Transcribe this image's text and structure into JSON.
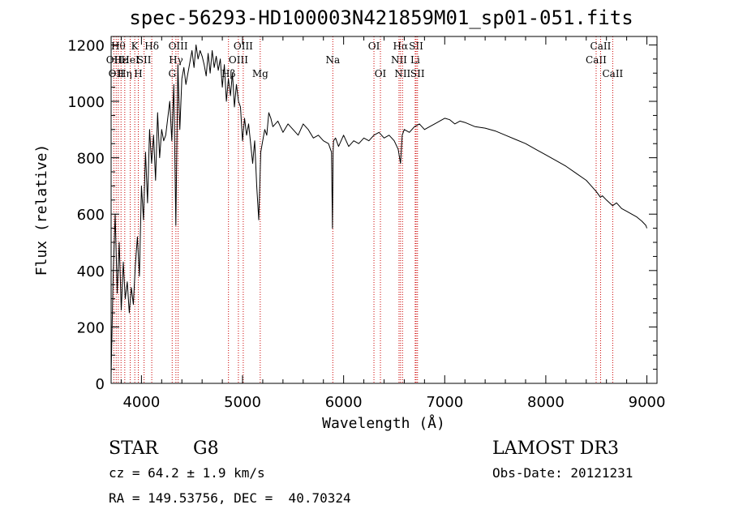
{
  "chart_data": {
    "type": "line",
    "title": "spec-56293-HD100003N421859M01_sp01-051.fits",
    "xlabel": "Wavelength (Å)",
    "ylabel": "Flux (relative)",
    "xlim": [
      3700,
      9100
    ],
    "ylim": [
      0,
      1230
    ],
    "xticks": [
      "4000",
      "5000",
      "6000",
      "7000",
      "8000",
      "9000"
    ],
    "yticks": [
      "0",
      "200",
      "400",
      "600",
      "800",
      "1000",
      "1200"
    ],
    "grid": false,
    "series": [
      {
        "x": [
          3700,
          3720,
          3740,
          3760,
          3780,
          3800,
          3820,
          3840,
          3860,
          3880,
          3900,
          3920,
          3940,
          3960,
          3980,
          4000,
          4020,
          4040,
          4060,
          4080,
          4100,
          4120,
          4140,
          4160,
          4180,
          4200,
          4220,
          4240,
          4260,
          4280,
          4300,
          4320,
          4340,
          4360,
          4380,
          4400,
          4420,
          4440,
          4460,
          4480,
          4500,
          4520,
          4540,
          4560,
          4580,
          4600,
          4620,
          4640,
          4660,
          4680,
          4700,
          4720,
          4740,
          4760,
          4780,
          4800,
          4820,
          4840,
          4860,
          4880,
          4900,
          4920,
          4940,
          4960,
          4980,
          5000,
          5020,
          5040,
          5060,
          5080,
          5100,
          5120,
          5140,
          5160,
          5180,
          5200,
          5220,
          5240,
          5260,
          5280,
          5300,
          5350,
          5400,
          5450,
          5500,
          5550,
          5600,
          5650,
          5700,
          5750,
          5800,
          5850,
          5880,
          5890,
          5896,
          5900,
          5920,
          5950,
          6000,
          6050,
          6100,
          6150,
          6200,
          6250,
          6300,
          6350,
          6400,
          6450,
          6500,
          6540,
          6563,
          6580,
          6600,
          6650,
          6700,
          6750,
          6800,
          6850,
          6900,
          6950,
          7000,
          7050,
          7100,
          7150,
          7200,
          7300,
          7400,
          7500,
          7600,
          7700,
          7800,
          7900,
          8000,
          8100,
          8200,
          8300,
          8400,
          8450,
          8500,
          8540,
          8560,
          8600,
          8660,
          8700,
          8750,
          8800,
          8850,
          8900,
          8950,
          8990,
          9000
        ],
        "y": [
          30,
          380,
          600,
          320,
          500,
          260,
          430,
          300,
          360,
          250,
          340,
          280,
          420,
          520,
          380,
          700,
          580,
          820,
          640,
          900,
          780,
          880,
          720,
          960,
          800,
          900,
          860,
          880,
          940,
          1000,
          860,
          1060,
          560,
          1130,
          900,
          1080,
          1120,
          1060,
          1100,
          1140,
          1180,
          1120,
          1200,
          1150,
          1180,
          1160,
          1130,
          1090,
          1170,
          1100,
          1180,
          1120,
          1160,
          1110,
          1150,
          1050,
          1130,
          1000,
          1080,
          1020,
          1100,
          980,
          1060,
          1000,
          980,
          860,
          940,
          880,
          920,
          850,
          780,
          860,
          700,
          580,
          820,
          860,
          900,
          880,
          960,
          940,
          910,
          930,
          890,
          920,
          900,
          880,
          920,
          900,
          870,
          880,
          860,
          850,
          820,
          550,
          820,
          860,
          870,
          840,
          880,
          840,
          860,
          850,
          870,
          860,
          880,
          890,
          870,
          880,
          860,
          830,
          780,
          880,
          900,
          890,
          910,
          920,
          900,
          910,
          920,
          930,
          940,
          935,
          920,
          930,
          925,
          910,
          905,
          895,
          880,
          865,
          850,
          830,
          810,
          790,
          770,
          745,
          720,
          700,
          680,
          660,
          665,
          650,
          630,
          640,
          620,
          610,
          600,
          590,
          575,
          560,
          550
        ]
      }
    ],
    "lines": [
      {
        "wl": 3727,
        "label": "OII",
        "row": 2
      },
      {
        "wl": 3750,
        "label": "OII",
        "row": 3
      },
      {
        "wl": 3771,
        "label": "Hθ",
        "row": 1
      },
      {
        "wl": 3798,
        "label": "Hε",
        "row": 2
      },
      {
        "wl": 3835,
        "label": "Hη",
        "row": 3
      },
      {
        "wl": 3889,
        "label": "HeI",
        "row": 2
      },
      {
        "wl": 3934,
        "label": "K",
        "row": 1
      },
      {
        "wl": 3969,
        "label": "H",
        "row": 3
      },
      {
        "wl": 4026,
        "label": "SII",
        "row": 2
      },
      {
        "wl": 4102,
        "label": "Hδ",
        "row": 1
      },
      {
        "wl": 4304,
        "label": "G",
        "row": 3
      },
      {
        "wl": 4341,
        "label": "Hγ",
        "row": 2
      },
      {
        "wl": 4363,
        "label": "OIII",
        "row": 1
      },
      {
        "wl": 4861,
        "label": "Hβ",
        "row": 3
      },
      {
        "wl": 4959,
        "label": "OIII",
        "row": 2
      },
      {
        "wl": 5007,
        "label": "OIII",
        "row": 1
      },
      {
        "wl": 5175,
        "label": "Mg",
        "row": 3
      },
      {
        "wl": 5893,
        "label": "Na",
        "row": 2
      },
      {
        "wl": 6300,
        "label": "OI",
        "row": 1
      },
      {
        "wl": 6364,
        "label": "OI",
        "row": 3
      },
      {
        "wl": 6548,
        "label": "NII",
        "row": 2
      },
      {
        "wl": 6563,
        "label": "Hα",
        "row": 1
      },
      {
        "wl": 6583,
        "label": "NII",
        "row": 3
      },
      {
        "wl": 6708,
        "label": "Li",
        "row": 2
      },
      {
        "wl": 6717,
        "label": "SII",
        "row": 1
      },
      {
        "wl": 6731,
        "label": "SII",
        "row": 3
      },
      {
        "wl": 8498,
        "label": "CaII",
        "row": 2
      },
      {
        "wl": 8542,
        "label": "CaII",
        "row": 1
      },
      {
        "wl": 8662,
        "label": "CaII",
        "row": 3
      }
    ]
  },
  "info": {
    "class": "STAR",
    "subclass": "G8",
    "survey": "LAMOST DR3",
    "cz": "cz = 64.2 ± 1.9 km/s",
    "obs_date": "Obs-Date: 20121231",
    "coords": "RA = 149.53756, DEC =  40.70324"
  },
  "colors": {
    "spectrum": "#000000",
    "line_marker": "#cc0000"
  }
}
